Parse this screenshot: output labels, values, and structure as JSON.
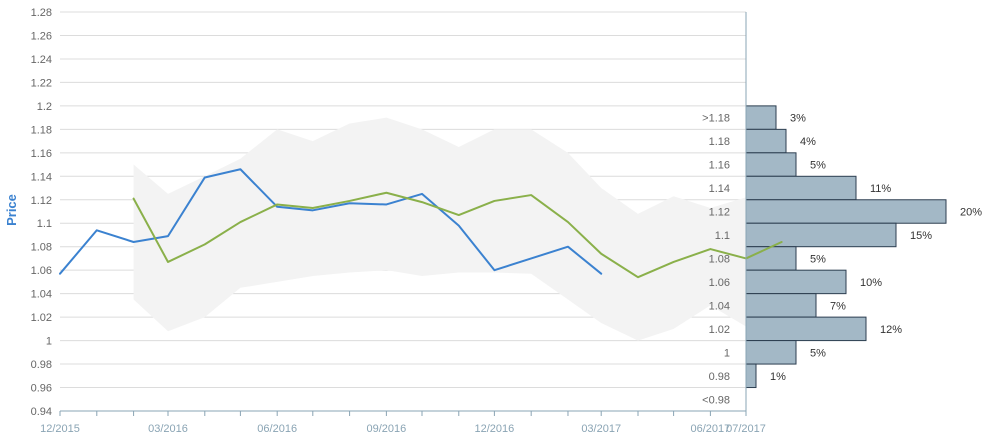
{
  "chart_data": {
    "type": "line",
    "ylabel": "Price",
    "xlabel": "",
    "ylim": [
      0.94,
      1.28
    ],
    "y_ticks": [
      "0.94",
      "0.96",
      "0.98",
      "1",
      "1.02",
      "1.04",
      "1.06",
      "1.08",
      "1.1",
      "1.12",
      "1.14",
      "1.16",
      "1.18",
      "1.2",
      "1.22",
      "1.24",
      "1.26",
      "1.28"
    ],
    "x_range": [
      "2015-12",
      "2017-07"
    ],
    "x_tick_labels": [
      {
        "date": "2015-12",
        "label": "12/2015"
      },
      {
        "date": "2016-03",
        "label": "03/2016"
      },
      {
        "date": "2016-06",
        "label": "06/2016"
      },
      {
        "date": "2016-09",
        "label": "09/2016"
      },
      {
        "date": "2016-12",
        "label": "12/2016"
      },
      {
        "date": "2017-03",
        "label": "03/2017"
      },
      {
        "date": "2017-06",
        "label": "06/2017"
      },
      {
        "date": "2017-07",
        "label": "07/2017"
      }
    ],
    "grid": true,
    "colors": {
      "band": "#f3f3f3",
      "actual": "#3b82d0",
      "forecast": "#8ab04a",
      "histogram": "#a3b8c6",
      "axis": "#8aa4b4",
      "grid": "#dcdcdc",
      "tick_text": "#666666",
      "ylabel": "#3b82d0"
    },
    "band": [
      {
        "x": "2016-02",
        "low": 1.035,
        "high": 1.15
      },
      {
        "x": "2016-03",
        "low": 1.008,
        "high": 1.125
      },
      {
        "x": "2016-04",
        "low": 1.02,
        "high": 1.14
      },
      {
        "x": "2016-05",
        "low": 1.045,
        "high": 1.155
      },
      {
        "x": "2016-06",
        "low": 1.05,
        "high": 1.18
      },
      {
        "x": "2016-07",
        "low": 1.055,
        "high": 1.17
      },
      {
        "x": "2016-08",
        "low": 1.058,
        "high": 1.185
      },
      {
        "x": "2016-09",
        "low": 1.06,
        "high": 1.19
      },
      {
        "x": "2016-10",
        "low": 1.055,
        "high": 1.18
      },
      {
        "x": "2016-11",
        "low": 1.058,
        "high": 1.165
      },
      {
        "x": "2016-12",
        "low": 1.058,
        "high": 1.18
      },
      {
        "x": "2017-01",
        "low": 1.057,
        "high": 1.18
      },
      {
        "x": "2017-02",
        "low": 1.035,
        "high": 1.16
      },
      {
        "x": "2017-03",
        "low": 1.015,
        "high": 1.13
      },
      {
        "x": "2017-04",
        "low": 1.0,
        "high": 1.108
      },
      {
        "x": "2017-05",
        "low": 1.01,
        "high": 1.123
      },
      {
        "x": "2017-06",
        "low": 1.03,
        "high": 1.113
      },
      {
        "x": "2017-07",
        "low": 1.012,
        "high": 1.122
      }
    ],
    "series": [
      {
        "name": "",
        "role": "actual",
        "points": [
          {
            "x": "2015-12",
            "y": 1.057
          },
          {
            "x": "2016-01",
            "y": 1.094
          },
          {
            "x": "2016-02",
            "y": 1.084
          },
          {
            "x": "2016-03",
            "y": 1.089
          },
          {
            "x": "2016-04",
            "y": 1.139
          },
          {
            "x": "2016-05",
            "y": 1.146
          },
          {
            "x": "2016-06",
            "y": 1.114
          },
          {
            "x": "2016-07",
            "y": 1.111
          },
          {
            "x": "2016-08",
            "y": 1.117
          },
          {
            "x": "2016-09",
            "y": 1.116
          },
          {
            "x": "2016-10",
            "y": 1.125
          },
          {
            "x": "2016-11",
            "y": 1.098
          },
          {
            "x": "2016-12",
            "y": 1.06
          },
          {
            "x": "2017-01",
            "y": 1.07
          },
          {
            "x": "2017-02",
            "y": 1.08
          },
          {
            "x": "2017-03",
            "y": 1.057
          }
        ]
      },
      {
        "name": "",
        "role": "forecast",
        "points": [
          {
            "x": "2016-02",
            "y": 1.121
          },
          {
            "x": "2016-03",
            "y": 1.067
          },
          {
            "x": "2016-04",
            "y": 1.082
          },
          {
            "x": "2016-05",
            "y": 1.101
          },
          {
            "x": "2016-06",
            "y": 1.116
          },
          {
            "x": "2016-07",
            "y": 1.113
          },
          {
            "x": "2016-08",
            "y": 1.119
          },
          {
            "x": "2016-09",
            "y": 1.126
          },
          {
            "x": "2016-10",
            "y": 1.118
          },
          {
            "x": "2016-11",
            "y": 1.107
          },
          {
            "x": "2016-12",
            "y": 1.119
          },
          {
            "x": "2017-01",
            "y": 1.124
          },
          {
            "x": "2017-02",
            "y": 1.101
          },
          {
            "x": "2017-03",
            "y": 1.074
          },
          {
            "x": "2017-04",
            "y": 1.054
          },
          {
            "x": "2017-05",
            "y": 1.067
          },
          {
            "x": "2017-06",
            "y": 1.078
          },
          {
            "x": "2017-07",
            "y": 1.07
          },
          {
            "x": "2017-07-31",
            "y": 1.084
          }
        ]
      }
    ],
    "histogram": [
      {
        "label": ">1.18",
        "lo": 1.18,
        "hi": 1.2,
        "percent": 3,
        "value_label": "3%"
      },
      {
        "label": "1.18",
        "lo": 1.16,
        "hi": 1.18,
        "percent": 4,
        "value_label": "4%"
      },
      {
        "label": "1.16",
        "lo": 1.14,
        "hi": 1.16,
        "percent": 5,
        "value_label": "5%"
      },
      {
        "label": "1.14",
        "lo": 1.12,
        "hi": 1.14,
        "percent": 11,
        "value_label": "11%"
      },
      {
        "label": "1.12",
        "lo": 1.1,
        "hi": 1.12,
        "percent": 20,
        "value_label": "20%"
      },
      {
        "label": "1.1",
        "lo": 1.08,
        "hi": 1.1,
        "percent": 15,
        "value_label": "15%"
      },
      {
        "label": "1.08",
        "lo": 1.06,
        "hi": 1.08,
        "percent": 5,
        "value_label": "5%"
      },
      {
        "label": "1.06",
        "lo": 1.04,
        "hi": 1.06,
        "percent": 10,
        "value_label": "10%"
      },
      {
        "label": "1.04",
        "lo": 1.02,
        "hi": 1.04,
        "percent": 7,
        "value_label": "7%"
      },
      {
        "label": "1.02",
        "lo": 1.0,
        "hi": 1.02,
        "percent": 12,
        "value_label": "12%"
      },
      {
        "label": "1",
        "lo": 0.98,
        "hi": 1.0,
        "percent": 5,
        "value_label": "5%"
      },
      {
        "label": "0.98",
        "lo": 0.96,
        "hi": 0.98,
        "percent": 1,
        "value_label": "1%"
      },
      {
        "label": "<0.98",
        "lo": 0.94,
        "hi": 0.96,
        "percent": 0,
        "value_label": ""
      }
    ]
  }
}
